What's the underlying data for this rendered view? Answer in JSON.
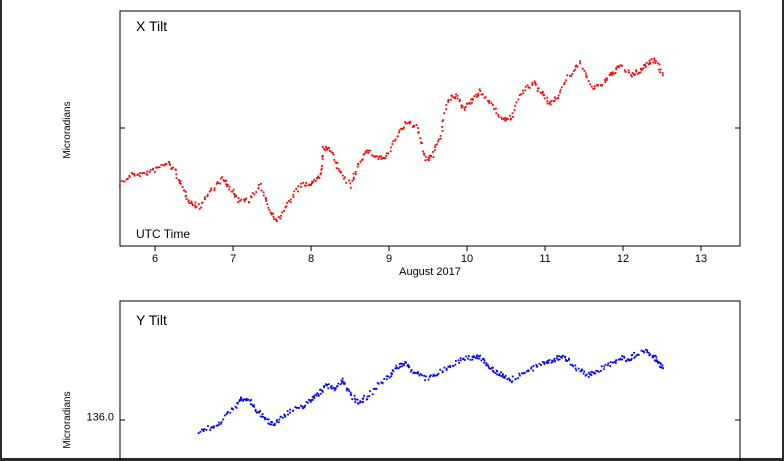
{
  "chart_data": [
    {
      "type": "scatter",
      "title": "X Tilt",
      "ylabel": "Microradians",
      "xlabel": "August 2017",
      "annotation": "UTC Time",
      "xlim": [
        5.55,
        13.5
      ],
      "ylim": [
        0,
        100
      ],
      "xticks": [
        6,
        7,
        8,
        9,
        10,
        11,
        12,
        13
      ],
      "yticks_labeled": [],
      "color": "#ff0000",
      "series": [
        {
          "x": [
            5.55,
            5.7,
            5.85,
            6.0,
            6.15,
            6.25,
            6.35,
            6.45,
            6.55,
            6.7,
            6.85,
            6.95,
            7.05,
            7.2,
            7.35,
            7.45,
            7.55,
            7.7,
            7.85,
            8.0,
            8.1,
            8.15,
            8.25,
            8.35,
            8.5,
            8.6,
            8.7,
            8.85,
            8.95,
            9.1,
            9.2,
            9.35,
            9.45,
            9.55,
            9.65,
            9.75,
            9.85,
            9.95,
            10.05,
            10.15,
            10.3,
            10.45,
            10.55,
            10.7,
            10.85,
            10.95,
            11.05,
            11.15,
            11.3,
            11.45,
            11.6,
            11.75,
            11.85,
            11.95,
            12.1,
            12.2,
            12.3,
            12.4,
            12.5
          ],
          "y": [
            27,
            31,
            31,
            33,
            36,
            32,
            24,
            19,
            17,
            24,
            29,
            25,
            20,
            20,
            26,
            16,
            11,
            19,
            26,
            27,
            30,
            42,
            41,
            32,
            26,
            36,
            41,
            38,
            38,
            47,
            53,
            51,
            37,
            39,
            48,
            63,
            64,
            59,
            62,
            66,
            61,
            54,
            55,
            66,
            70,
            65,
            61,
            64,
            73,
            78,
            67,
            70,
            74,
            77,
            73,
            75,
            78,
            80,
            73
          ]
        }
      ]
    },
    {
      "type": "scatter",
      "title": "Y Tilt",
      "ylabel": "Microradians",
      "xlabel": "",
      "xlim": [
        5.55,
        13.5
      ],
      "ylim": [
        135.68,
        136.68
      ],
      "yticks_labeled": [
        136.0
      ],
      "color": "#0000ff",
      "series": [
        {
          "x": [
            6.55,
            6.7,
            6.85,
            7.0,
            7.1,
            7.2,
            7.3,
            7.4,
            7.5,
            7.6,
            7.75,
            7.9,
            8.0,
            8.1,
            8.2,
            8.3,
            8.4,
            8.5,
            8.6,
            8.7,
            8.85,
            9.0,
            9.1,
            9.2,
            9.3,
            9.45,
            9.6,
            9.75,
            9.9,
            10.05,
            10.15,
            10.25,
            10.35,
            10.45,
            10.55,
            10.7,
            10.85,
            11.0,
            11.1,
            11.2,
            11.3,
            11.45,
            11.55,
            11.65,
            11.8,
            11.95,
            12.05,
            12.15,
            12.3,
            12.4,
            12.45,
            12.5
          ],
          "y": [
            135.92,
            135.94,
            135.98,
            136.06,
            136.11,
            136.1,
            136.04,
            135.99,
            135.96,
            136.0,
            136.04,
            136.07,
            136.11,
            136.15,
            136.19,
            136.17,
            136.22,
            136.13,
            136.09,
            136.12,
            136.19,
            136.24,
            136.3,
            136.32,
            136.27,
            136.23,
            136.25,
            136.3,
            136.34,
            136.35,
            136.36,
            136.31,
            136.27,
            136.25,
            136.22,
            136.26,
            136.29,
            136.33,
            136.34,
            136.36,
            136.33,
            136.27,
            136.25,
            136.27,
            136.31,
            136.35,
            136.34,
            136.37,
            136.39,
            136.35,
            136.32,
            136.29
          ]
        }
      ]
    }
  ]
}
